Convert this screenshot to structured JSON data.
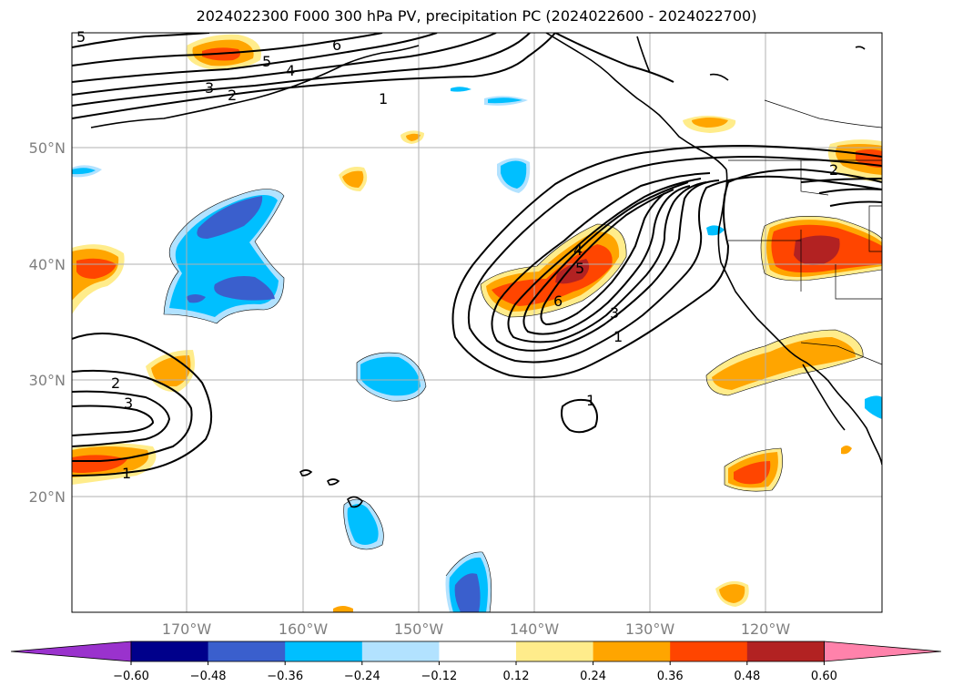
{
  "title": "2024022300 F000 300 hPa PV, precipitation PC (2024022600 - 2024022700)",
  "latitude_labels": [
    "50°N",
    "40°N",
    "30°N",
    "20°N"
  ],
  "longitude_labels": [
    "170°W",
    "160°W",
    "150°W",
    "140°W",
    "130°W",
    "120°W"
  ],
  "colorbar": {
    "tick_labels": [
      "−0.60",
      "−0.48",
      "−0.36",
      "−0.24",
      "−0.12",
      "0.12",
      "0.24",
      "0.36",
      "0.48",
      "0.60"
    ],
    "bins": [
      {
        "color": "#9a32cd"
      },
      {
        "color": "#00008b"
      },
      {
        "color": "#3a5fcd"
      },
      {
        "color": "#00bfff"
      },
      {
        "color": "#b2e2ff"
      },
      {
        "color": "#ffffff"
      },
      {
        "color": "#ffec8b"
      },
      {
        "color": "#ffa500"
      },
      {
        "color": "#ff4500"
      },
      {
        "color": "#b22222"
      },
      {
        "color": "#ff82ab"
      }
    ]
  },
  "contour_labels": [
    "5",
    "6",
    "5",
    "4",
    "3",
    "2",
    "1",
    "2",
    "3",
    "1",
    "4",
    "5",
    "6",
    "3",
    "1",
    "1",
    "2"
  ],
  "colors": {
    "positive_light": "#ffec8b",
    "positive_mid": "#ffa500",
    "positive_high": "#ff4500",
    "positive_max": "#b22222",
    "negative_light": "#b2e2ff",
    "negative_mid": "#00bfff",
    "negative_high": "#3a5fcd",
    "grid": "#b0b0b0"
  }
}
